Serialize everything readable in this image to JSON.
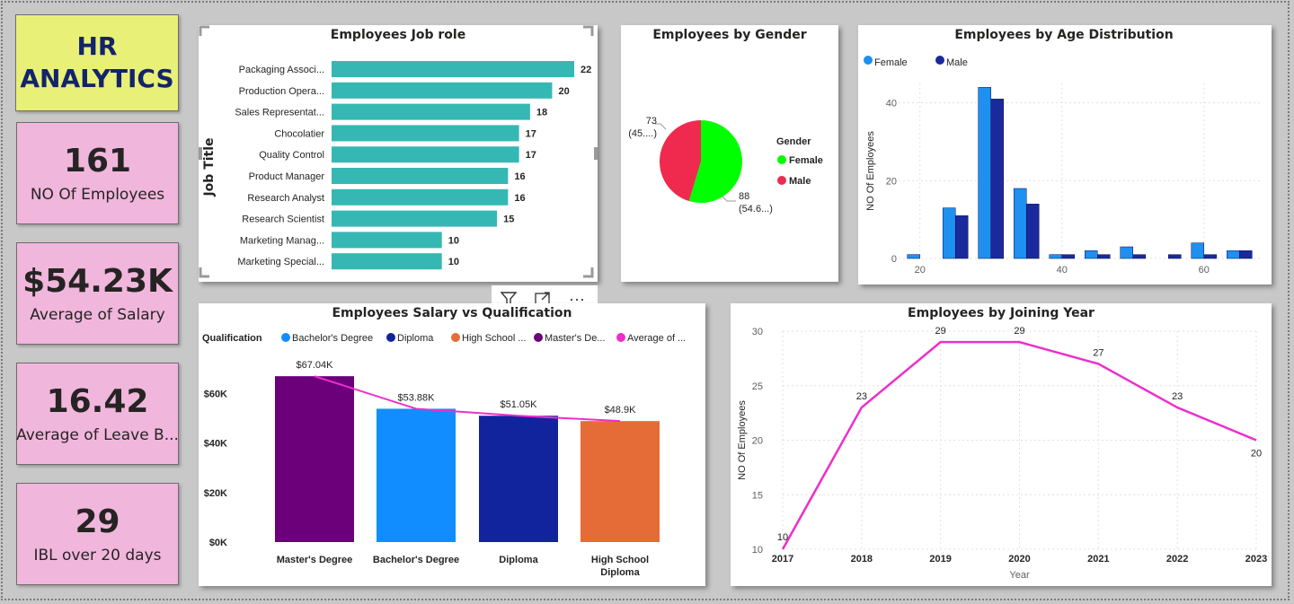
{
  "header": {
    "line1": "HR",
    "line2": "ANALYTICS"
  },
  "colors": {
    "teal": "#35b8b4",
    "female": "#00ff00",
    "male": "#ef2a4e",
    "ageFemale": "#1e90f0",
    "ageMale": "#1a2a9c",
    "pink": "#ed2ecb"
  },
  "kpis": [
    {
      "value": "161",
      "label": "NO Of Employees"
    },
    {
      "value": "$54.23K",
      "label": "Average of Salary"
    },
    {
      "value": "16.42",
      "label": "Average of Leave B..."
    },
    {
      "value": "29",
      "label": "IBL over 20 days"
    }
  ],
  "toolbar": {
    "filter_icon": "funnel-icon",
    "focus_icon": "expand-icon",
    "more_icon": "more-options-icon",
    "more_label": "···"
  },
  "chart_data": [
    {
      "type": "bar",
      "orientation": "horizontal",
      "title": "Employees Job role",
      "ylabel": "Job Title",
      "categories": [
        "Packaging Associ...",
        "Production Opera...",
        "Sales Representat...",
        "Chocolatier",
        "Quality Control",
        "Product Manager",
        "Research Analyst",
        "Research Scientist",
        "Marketing Manag...",
        "Marketing Special..."
      ],
      "values": [
        22,
        20,
        18,
        17,
        17,
        16,
        16,
        15,
        10,
        10
      ],
      "xlim": [
        0,
        22
      ]
    },
    {
      "type": "pie",
      "title": "Employees by Gender",
      "legend_title": "Gender",
      "legend_position": "right",
      "slices": [
        {
          "label": "Female",
          "value": 88,
          "display": "88",
          "pct_display": "(54.6...)"
        },
        {
          "label": "Male",
          "value": 73,
          "display": "73",
          "pct_display": "(45....)"
        }
      ]
    },
    {
      "type": "bar",
      "title": "Employees by Age Distribution",
      "ylabel": "NO Of Employees",
      "legend_position": "top-left",
      "xlim": [
        17,
        68
      ],
      "ylim": [
        0,
        45
      ],
      "xticks": [
        20,
        40,
        60
      ],
      "yticks": [
        0,
        20,
        40
      ],
      "series": [
        {
          "name": "Female",
          "x": [
            20,
            25,
            30,
            35,
            40,
            45,
            50,
            55,
            60,
            65
          ],
          "values": [
            1,
            13,
            44,
            18,
            1,
            2,
            3,
            0,
            4,
            2
          ]
        },
        {
          "name": "Male",
          "x": [
            20,
            25,
            30,
            35,
            40,
            45,
            50,
            55,
            60,
            65
          ],
          "values": [
            0,
            11,
            41,
            14,
            1,
            1,
            1,
            1,
            1,
            2
          ]
        }
      ]
    },
    {
      "type": "bar",
      "title": "Employees Salary vs Qualification",
      "legend_title": "Qualification",
      "legend_position": "top-left",
      "legend": [
        "Bachelor's Degree",
        "Diploma",
        "High School ...",
        "Master's De...",
        "Average of ..."
      ],
      "categories": [
        "Master's Degree",
        "Bachelor's Degree",
        "Diploma",
        "High School Diploma"
      ],
      "values": [
        67040,
        53880,
        51050,
        48900
      ],
      "labels": [
        "$67.04K",
        "$53.88K",
        "$51.05K",
        "$48.9K"
      ],
      "colors": [
        "#6b007a",
        "#118dff",
        "#12239e",
        "#e66c37"
      ],
      "line_values": [
        67040,
        53880,
        51050,
        48900
      ],
      "ylim": [
        0,
        70000
      ],
      "yticks": [
        "$0K",
        "$20K",
        "$40K",
        "$60K"
      ]
    },
    {
      "type": "line",
      "title": "Employees by Joining Year",
      "xlabel": "Year",
      "ylabel": "NO Of Employees",
      "x": [
        2017,
        2018,
        2019,
        2020,
        2021,
        2022,
        2023
      ],
      "values": [
        10,
        23,
        29,
        29,
        27,
        23,
        20
      ],
      "ylim": [
        10,
        30
      ],
      "yticks": [
        10,
        15,
        20,
        25,
        30
      ]
    }
  ]
}
